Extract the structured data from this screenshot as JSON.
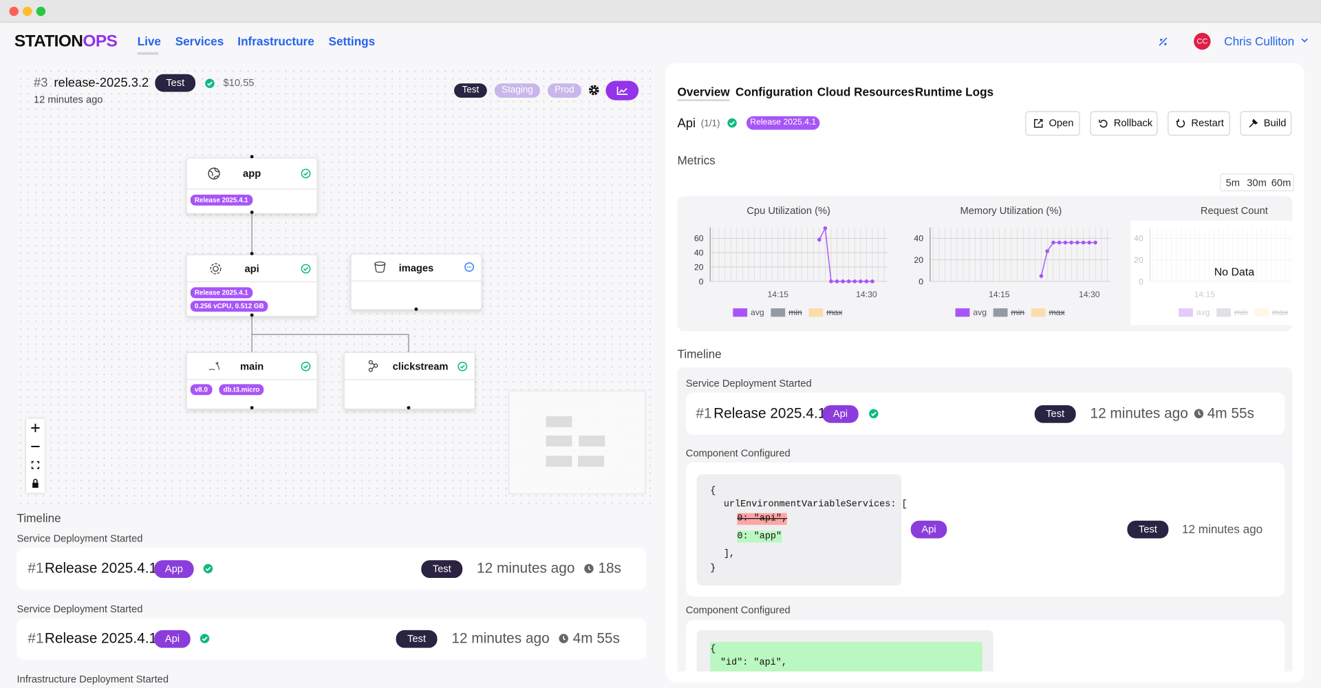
{
  "header": {
    "logo_main": "STATION",
    "logo_accent": "OPS",
    "nav": [
      "Live",
      "Services",
      "Infrastructure",
      "Settings"
    ],
    "avatar": "CC",
    "user": "Chris Culliton"
  },
  "release": {
    "number": "#3",
    "name": "release-2025.3.2",
    "env": "Test",
    "cost": "$10.55",
    "time": "12 minutes ago",
    "envs": [
      "Test",
      "Staging",
      "Prod"
    ]
  },
  "graph": {
    "nodes": [
      {
        "label": "app",
        "tags": [
          "Release 2025.4.1"
        ]
      },
      {
        "label": "api",
        "tags": [
          "Release 2025.4.1",
          "0.256 vCPU, 0.512 GB"
        ]
      },
      {
        "label": "images",
        "tags": []
      },
      {
        "label": "main",
        "tags": [
          "v8.0",
          "db.t3.micro"
        ]
      },
      {
        "label": "clickstream",
        "tags": []
      }
    ]
  },
  "left_timeline": {
    "title": "Timeline",
    "events": [
      {
        "heading": "Service Deployment Started",
        "number": "#1",
        "release": "Release 2025.4.1",
        "service": "App",
        "env": "Test",
        "time": "12 minutes ago",
        "duration": "18s"
      },
      {
        "heading": "Service Deployment Started",
        "number": "#1",
        "release": "Release 2025.4.1",
        "service": "Api",
        "env": "Test",
        "time": "12 minutes ago",
        "duration": "4m 55s"
      },
      {
        "heading": "Infrastructure Deployment Started"
      }
    ]
  },
  "detail": {
    "tabs": [
      "Overview",
      "Configuration",
      "Cloud Resources",
      "Runtime Logs"
    ],
    "service": "Api",
    "count": "(1/1)",
    "release": "Release 2025.4.1",
    "actions": [
      "Open",
      "Rollback",
      "Restart",
      "Build"
    ],
    "metrics": {
      "title": "Metrics",
      "ranges": [
        "5m",
        "30m",
        "60m"
      ],
      "charts": [
        {
          "type": "line",
          "title": "Cpu Utilization (%)",
          "ylim": [
            0,
            75
          ],
          "yticks": [
            0,
            20,
            40,
            60
          ],
          "categories": [
            null,
            null,
            null,
            null,
            null,
            null,
            null,
            null,
            null,
            null,
            null,
            "14:15",
            null,
            null,
            null,
            null,
            null,
            null,
            null,
            null,
            null,
            null,
            null,
            null,
            null,
            null,
            "14:30",
            null,
            null,
            null
          ],
          "series": [
            {
              "name": "avg",
              "color": "#a855f7",
              "values": [
                null,
                null,
                null,
                null,
                null,
                null,
                null,
                null,
                null,
                null,
                null,
                null,
                null,
                null,
                null,
                null,
                null,
                null,
                58,
                74,
                0,
                0,
                0,
                0,
                0,
                0,
                0,
                0,
                null,
                null
              ]
            }
          ],
          "legend": [
            {
              "name": "avg",
              "color": "#a855f7",
              "hidden": false
            },
            {
              "name": "min",
              "color": "#6b7280",
              "hidden": true
            },
            {
              "name": "max",
              "color": "#fcd38d",
              "hidden": true
            }
          ]
        },
        {
          "type": "line",
          "title": "Memory Utilization (%)",
          "ylim": [
            0,
            50
          ],
          "yticks": [
            0,
            20,
            40
          ],
          "categories": [
            null,
            null,
            null,
            null,
            null,
            null,
            null,
            null,
            null,
            null,
            null,
            "14:15",
            null,
            null,
            null,
            null,
            null,
            null,
            null,
            null,
            null,
            null,
            null,
            null,
            null,
            null,
            "14:30",
            null,
            null,
            null
          ],
          "series": [
            {
              "name": "avg",
              "color": "#a855f7",
              "values": [
                null,
                null,
                null,
                null,
                null,
                null,
                null,
                null,
                null,
                null,
                null,
                null,
                null,
                null,
                null,
                null,
                null,
                null,
                5,
                28,
                36,
                36,
                36,
                36,
                36,
                36,
                36,
                36,
                null,
                null
              ]
            }
          ],
          "legend": [
            {
              "name": "avg",
              "color": "#a855f7",
              "hidden": false
            },
            {
              "name": "min",
              "color": "#6b7280",
              "hidden": true
            },
            {
              "name": "max",
              "color": "#fcd38d",
              "hidden": true
            }
          ]
        },
        {
          "type": "line",
          "title": "Request Count",
          "ylim": [
            0,
            50
          ],
          "yticks": [
            0,
            20,
            40
          ],
          "empty_label": "No Data",
          "categories": [
            null,
            null,
            null,
            null,
            null,
            null,
            null,
            null,
            null,
            null,
            null,
            "14:15",
            null,
            null,
            null,
            null,
            null,
            null,
            null,
            null,
            null,
            null,
            null,
            null,
            null,
            null,
            null,
            null,
            null,
            null
          ],
          "series": [],
          "legend": [
            {
              "name": "avg",
              "color": "#a855f7",
              "hidden": false
            },
            {
              "name": "min",
              "color": "#6b7280",
              "hidden": true
            },
            {
              "name": "max",
              "color": "#fcd38d",
              "hidden": true
            }
          ]
        }
      ]
    },
    "timeline": {
      "title": "Timeline",
      "events": [
        {
          "heading": "Service Deployment Started",
          "number": "#1",
          "release": "Release 2025.4.1",
          "service": "Api",
          "env": "Test",
          "time": "12 minutes ago",
          "duration": "4m 55s"
        },
        {
          "heading": "Component Configured",
          "code": [
            "{",
            "urlEnvironmentVariableServices: [",
            "0: \"api\",",
            "0: \"app\"",
            "],",
            "}"
          ],
          "service": "Api",
          "env": "Test",
          "time": "12 minutes ago"
        },
        {
          "heading": "Component Configured",
          "code": [
            "{",
            "\"id\": \"api\","
          ]
        }
      ]
    }
  }
}
